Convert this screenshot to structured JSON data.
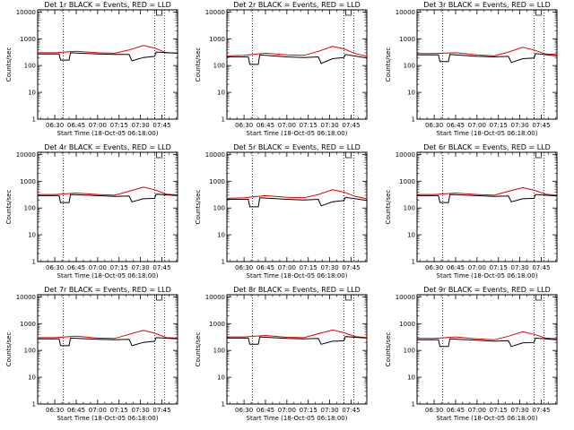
{
  "figure": {
    "background": "#ffffff",
    "x_tick_labels": [
      "06:30",
      "06:45",
      "07:00",
      "07:15",
      "07:30",
      "07:45"
    ],
    "y_tick_labels": [
      "1",
      "10",
      "100",
      "1000",
      "10000"
    ]
  },
  "chart_data": [
    {
      "type": "line",
      "title": "Det 1r BLACK = Events, RED = LLD",
      "xlabel": "Start Time (18-Oct-05 06:18:00)",
      "ylabel": "Counts/sec",
      "y_scale": "log",
      "ylim": [
        1,
        12000
      ],
      "xlim": [
        "06:18",
        "07:56"
      ],
      "markers": [
        "06:36",
        "07:40",
        "07:47"
      ],
      "series": [
        {
          "color": "#e00000",
          "points": [
            [
              "06:18",
              300
            ],
            [
              "06:30",
              300
            ],
            [
              "06:45",
              340
            ],
            [
              "07:00",
              300
            ],
            [
              "07:12",
              290
            ],
            [
              "07:22",
              380
            ],
            [
              "07:32",
              560
            ],
            [
              "07:40",
              450
            ],
            [
              "07:48",
              300
            ],
            [
              "07:56",
              290
            ]
          ]
        },
        {
          "color": "#000000",
          "points": [
            [
              "06:18",
              270
            ],
            [
              "06:33",
              270
            ],
            [
              "06:34",
              160
            ],
            [
              "06:40",
              160
            ],
            [
              "06:41",
              300
            ],
            [
              "07:00",
              270
            ],
            [
              "07:12",
              260
            ],
            [
              "07:22",
              260
            ],
            [
              "07:24",
              150
            ],
            [
              "07:32",
              200
            ],
            [
              "07:40",
              220
            ],
            [
              "07:41",
              320
            ],
            [
              "07:56",
              290
            ]
          ]
        }
      ]
    },
    {
      "type": "line",
      "title": "Det 2r BLACK = Events, RED = LLD",
      "xlabel": "Start Time (18-Oct-05 06:18:00)",
      "ylabel": "Counts/sec",
      "y_scale": "log",
      "ylim": [
        1,
        12000
      ],
      "xlim": [
        "06:18",
        "07:56"
      ],
      "markers": [
        "06:36",
        "07:40",
        "07:47"
      ],
      "series": [
        {
          "color": "#e00000",
          "points": [
            [
              "06:18",
              230
            ],
            [
              "06:30",
              240
            ],
            [
              "06:45",
              290
            ],
            [
              "07:00",
              250
            ],
            [
              "07:12",
              240
            ],
            [
              "07:22",
              340
            ],
            [
              "07:32",
              520
            ],
            [
              "07:40",
              420
            ],
            [
              "07:48",
              280
            ],
            [
              "07:56",
              220
            ]
          ]
        },
        {
          "color": "#000000",
          "points": [
            [
              "06:18",
              210
            ],
            [
              "06:33",
              210
            ],
            [
              "06:34",
              110
            ],
            [
              "06:40",
              110
            ],
            [
              "06:41",
              250
            ],
            [
              "07:00",
              210
            ],
            [
              "07:12",
              200
            ],
            [
              "07:22",
              210
            ],
            [
              "07:24",
              120
            ],
            [
              "07:32",
              180
            ],
            [
              "07:40",
              200
            ],
            [
              "07:41",
              260
            ],
            [
              "07:56",
              190
            ]
          ]
        }
      ]
    },
    {
      "type": "line",
      "title": "Det 3r BLACK = Events, RED = LLD",
      "xlabel": "Start Time (18-Oct-05 06:18:00)",
      "ylabel": "Counts/sec",
      "y_scale": "log",
      "ylim": [
        1,
        12000
      ],
      "xlim": [
        "06:18",
        "07:56"
      ],
      "markers": [
        "06:36",
        "07:40",
        "07:47"
      ],
      "series": [
        {
          "color": "#e00000",
          "points": [
            [
              "06:18",
              280
            ],
            [
              "06:30",
              280
            ],
            [
              "06:45",
              300
            ],
            [
              "07:00",
              250
            ],
            [
              "07:12",
              230
            ],
            [
              "07:22",
              320
            ],
            [
              "07:32",
              480
            ],
            [
              "07:40",
              380
            ],
            [
              "07:48",
              270
            ],
            [
              "07:56",
              260
            ]
          ]
        },
        {
          "color": "#000000",
          "points": [
            [
              "06:18",
              250
            ],
            [
              "06:33",
              250
            ],
            [
              "06:34",
              140
            ],
            [
              "06:40",
              140
            ],
            [
              "06:41",
              260
            ],
            [
              "07:00",
              220
            ],
            [
              "07:12",
              210
            ],
            [
              "07:22",
              220
            ],
            [
              "07:24",
              130
            ],
            [
              "07:32",
              180
            ],
            [
              "07:40",
              190
            ],
            [
              "07:41",
              280
            ],
            [
              "07:56",
              230
            ]
          ]
        }
      ]
    },
    {
      "type": "line",
      "title": "Det 4r BLACK = Events, RED = LLD",
      "xlabel": "Start Time (18-Oct-05 06:18:00)",
      "ylabel": "Counts/sec",
      "y_scale": "log",
      "ylim": [
        1,
        12000
      ],
      "xlim": [
        "06:18",
        "07:56"
      ],
      "markers": [
        "06:36",
        "07:40",
        "07:47"
      ],
      "series": [
        {
          "color": "#e00000",
          "points": [
            [
              "06:18",
              320
            ],
            [
              "06:30",
              320
            ],
            [
              "06:45",
              360
            ],
            [
              "07:00",
              320
            ],
            [
              "07:12",
              300
            ],
            [
              "07:22",
              420
            ],
            [
              "07:32",
              600
            ],
            [
              "07:40",
              480
            ],
            [
              "07:48",
              330
            ],
            [
              "07:56",
              310
            ]
          ]
        },
        {
          "color": "#000000",
          "points": [
            [
              "06:18",
              290
            ],
            [
              "06:33",
              290
            ],
            [
              "06:34",
              160
            ],
            [
              "06:40",
              160
            ],
            [
              "06:41",
              320
            ],
            [
              "07:00",
              290
            ],
            [
              "07:12",
              270
            ],
            [
              "07:22",
              280
            ],
            [
              "07:24",
              170
            ],
            [
              "07:32",
              220
            ],
            [
              "07:40",
              230
            ],
            [
              "07:41",
              330
            ],
            [
              "07:56",
              290
            ]
          ]
        }
      ]
    },
    {
      "type": "line",
      "title": "Det 5r BLACK = Events, RED = LLD",
      "xlabel": "Start Time (18-Oct-05 06:18:00)",
      "ylabel": "Counts/sec",
      "y_scale": "log",
      "ylim": [
        1,
        12000
      ],
      "xlim": [
        "06:18",
        "07:56"
      ],
      "markers": [
        "06:36",
        "07:40",
        "07:47"
      ],
      "series": [
        {
          "color": "#e00000",
          "points": [
            [
              "06:18",
              230
            ],
            [
              "06:30",
              240
            ],
            [
              "06:45",
              290
            ],
            [
              "07:00",
              250
            ],
            [
              "07:12",
              240
            ],
            [
              "07:22",
              320
            ],
            [
              "07:32",
              480
            ],
            [
              "07:40",
              390
            ],
            [
              "07:48",
              270
            ],
            [
              "07:56",
              220
            ]
          ]
        },
        {
          "color": "#000000",
          "points": [
            [
              "06:18",
              210
            ],
            [
              "06:33",
              210
            ],
            [
              "06:34",
              110
            ],
            [
              "06:40",
              110
            ],
            [
              "06:41",
              240
            ],
            [
              "07:00",
              210
            ],
            [
              "07:12",
              200
            ],
            [
              "07:22",
              210
            ],
            [
              "07:24",
              120
            ],
            [
              "07:32",
              170
            ],
            [
              "07:40",
              190
            ],
            [
              "07:41",
              250
            ],
            [
              "07:56",
              190
            ]
          ]
        }
      ]
    },
    {
      "type": "line",
      "title": "Det 6r BLACK = Events, RED = LLD",
      "xlabel": "Start Time (18-Oct-05 06:18:00)",
      "ylabel": "Counts/sec",
      "y_scale": "log",
      "ylim": [
        1,
        12000
      ],
      "xlim": [
        "06:18",
        "07:56"
      ],
      "markers": [
        "06:36",
        "07:40",
        "07:47"
      ],
      "series": [
        {
          "color": "#e00000",
          "points": [
            [
              "06:18",
              320
            ],
            [
              "06:30",
              320
            ],
            [
              "06:45",
              360
            ],
            [
              "07:00",
              320
            ],
            [
              "07:12",
              300
            ],
            [
              "07:22",
              420
            ],
            [
              "07:32",
              580
            ],
            [
              "07:40",
              460
            ],
            [
              "07:48",
              330
            ],
            [
              "07:56",
              300
            ]
          ]
        },
        {
          "color": "#000000",
          "points": [
            [
              "06:18",
              290
            ],
            [
              "06:33",
              290
            ],
            [
              "06:34",
              160
            ],
            [
              "06:40",
              160
            ],
            [
              "06:41",
              320
            ],
            [
              "07:00",
              290
            ],
            [
              "07:12",
              270
            ],
            [
              "07:22",
              280
            ],
            [
              "07:24",
              170
            ],
            [
              "07:32",
              220
            ],
            [
              "07:40",
              230
            ],
            [
              "07:41",
              320
            ],
            [
              "07:56",
              280
            ]
          ]
        }
      ]
    },
    {
      "type": "line",
      "title": "Det 7r BLACK = Events, RED = LLD",
      "xlabel": "Start Time (18-Oct-05 06:18:00)",
      "ylabel": "Counts/sec",
      "y_scale": "log",
      "ylim": [
        1,
        12000
      ],
      "xlim": [
        "06:18",
        "07:56"
      ],
      "markers": [
        "06:36",
        "07:40",
        "07:47"
      ],
      "series": [
        {
          "color": "#e00000",
          "points": [
            [
              "06:18",
              300
            ],
            [
              "06:30",
              300
            ],
            [
              "06:45",
              340
            ],
            [
              "07:00",
              290
            ],
            [
              "07:12",
              280
            ],
            [
              "07:22",
              400
            ],
            [
              "07:32",
              560
            ],
            [
              "07:40",
              440
            ],
            [
              "07:48",
              300
            ],
            [
              "07:56",
              290
            ]
          ]
        },
        {
          "color": "#000000",
          "points": [
            [
              "06:18",
              270
            ],
            [
              "06:33",
              270
            ],
            [
              "06:34",
              150
            ],
            [
              "06:40",
              150
            ],
            [
              "06:41",
              290
            ],
            [
              "07:00",
              260
            ],
            [
              "07:12",
              250
            ],
            [
              "07:22",
              260
            ],
            [
              "07:24",
              150
            ],
            [
              "07:32",
              200
            ],
            [
              "07:40",
              220
            ],
            [
              "07:41",
              300
            ],
            [
              "07:56",
              270
            ]
          ]
        }
      ]
    },
    {
      "type": "line",
      "title": "Det 8r BLACK = Events, RED = LLD",
      "xlabel": "Start Time (18-Oct-05 06:18:00)",
      "ylabel": "Counts/sec",
      "y_scale": "log",
      "ylim": [
        1,
        12000
      ],
      "xlim": [
        "06:18",
        "07:56"
      ],
      "markers": [
        "06:36",
        "07:40",
        "07:47"
      ],
      "series": [
        {
          "color": "#e00000",
          "points": [
            [
              "06:18",
              320
            ],
            [
              "06:30",
              320
            ],
            [
              "06:45",
              360
            ],
            [
              "07:00",
              310
            ],
            [
              "07:12",
              300
            ],
            [
              "07:22",
              420
            ],
            [
              "07:32",
              580
            ],
            [
              "07:40",
              460
            ],
            [
              "07:48",
              330
            ],
            [
              "07:56",
              300
            ]
          ]
        },
        {
          "color": "#000000",
          "points": [
            [
              "06:18",
              290
            ],
            [
              "06:33",
              290
            ],
            [
              "06:34",
              170
            ],
            [
              "06:40",
              170
            ],
            [
              "06:41",
              320
            ],
            [
              "07:00",
              280
            ],
            [
              "07:12",
              270
            ],
            [
              "07:22",
              280
            ],
            [
              "07:24",
              170
            ],
            [
              "07:32",
              220
            ],
            [
              "07:40",
              230
            ],
            [
              "07:41",
              330
            ],
            [
              "07:56",
              290
            ]
          ]
        }
      ]
    },
    {
      "type": "line",
      "title": "Det 9r BLACK = Events, RED = LLD",
      "xlabel": "Start Time (18-Oct-05 06:18:00)",
      "ylabel": "Counts/sec",
      "y_scale": "log",
      "ylim": [
        1,
        12000
      ],
      "xlim": [
        "06:18",
        "07:56"
      ],
      "markers": [
        "06:36",
        "07:40",
        "07:47"
      ],
      "series": [
        {
          "color": "#e00000",
          "points": [
            [
              "06:18",
              280
            ],
            [
              "06:30",
              280
            ],
            [
              "06:45",
              320
            ],
            [
              "07:00",
              270
            ],
            [
              "07:12",
              250
            ],
            [
              "07:22",
              340
            ],
            [
              "07:32",
              500
            ],
            [
              "07:40",
              400
            ],
            [
              "07:48",
              290
            ],
            [
              "07:56",
              270
            ]
          ]
        },
        {
          "color": "#000000",
          "points": [
            [
              "06:18",
              250
            ],
            [
              "06:33",
              250
            ],
            [
              "06:34",
              140
            ],
            [
              "06:40",
              140
            ],
            [
              "06:41",
              270
            ],
            [
              "07:00",
              240
            ],
            [
              "07:12",
              220
            ],
            [
              "07:22",
              230
            ],
            [
              "07:24",
              140
            ],
            [
              "07:32",
              190
            ],
            [
              "07:40",
              200
            ],
            [
              "07:41",
              290
            ],
            [
              "07:56",
              250
            ]
          ]
        }
      ]
    }
  ]
}
